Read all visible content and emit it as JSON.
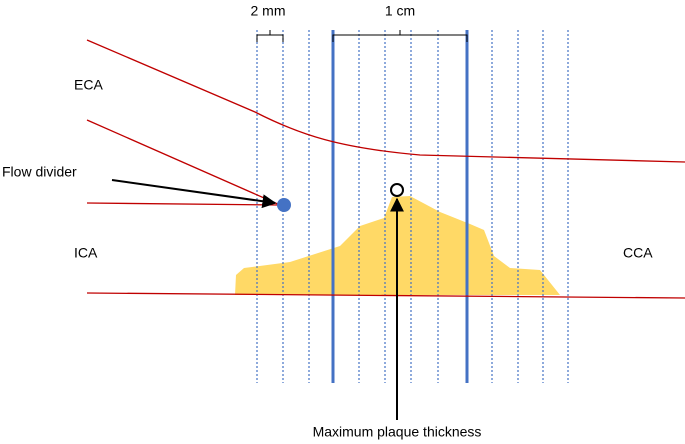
{
  "labels": {
    "scale_small": "2 mm",
    "scale_large": "1 cm",
    "eca": "ECA",
    "flow_divider": "Flow divider",
    "ica": "ICA",
    "cca": "CCA",
    "max_plaque": "Maximum plaque thickness"
  }
}
